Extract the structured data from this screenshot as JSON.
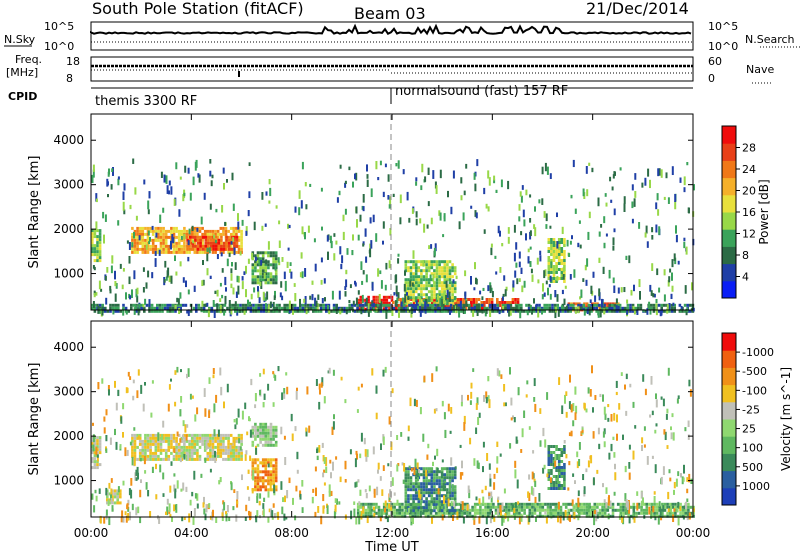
{
  "header": {
    "station_title": "South Pole Station (fitACF)",
    "beam": "Beam 03",
    "date": "21/Dec/2014"
  },
  "strip_labels": {
    "nsky": "N.Sky",
    "nsearch": "N.Search",
    "freq_line1": "Freq.",
    "freq_line2": "[MHz]",
    "nave": "Nave",
    "cpid": "CPID",
    "nsky_ticks": [
      "10^5",
      "10^0"
    ],
    "nsearch_ticks": [
      "10^5",
      "10^0"
    ],
    "freq_ticks": [
      "18",
      "8"
    ],
    "nave_ticks": [
      "60",
      "0"
    ],
    "cpid_segments": [
      {
        "label": "themis 3300 RF",
        "start_hour": 0
      },
      {
        "label": "normalsound (fast) 157 RF",
        "start_hour": 12
      }
    ]
  },
  "chart_data": [
    {
      "type": "heatmap",
      "title": "",
      "xlabel": "Time UT",
      "ylabel": "Slant Range [km]",
      "x_ticks": [
        "00:00",
        "04:00",
        "08:00",
        "12:00",
        "16:00",
        "20:00",
        "00:00"
      ],
      "xlim_hours": [
        0,
        24
      ],
      "y_ticks": [
        1000,
        2000,
        3000,
        4000
      ],
      "ylim": [
        180,
        4590
      ],
      "colorbar": {
        "label": "Power [dB]",
        "ticks": [
          "4",
          "8",
          "12",
          "16",
          "20",
          "24",
          "28"
        ],
        "colors": [
          "#0a1ef5",
          "#1f3fa6",
          "#2b6b45",
          "#3aa35a",
          "#98d848",
          "#e8e03c",
          "#f5b02a",
          "#f07818",
          "#e84018",
          "#f00c0c"
        ]
      },
      "regions": [
        {
          "t0": 0.0,
          "t1": 0.4,
          "r0": 1300,
          "r1": 2000,
          "level": 4
        },
        {
          "t0": 1.6,
          "t1": 6.0,
          "r0": 1450,
          "r1": 2050,
          "level": 6
        },
        {
          "t0": 3.8,
          "t1": 5.8,
          "r0": 1550,
          "r1": 1850,
          "level": 8
        },
        {
          "t0": 6.4,
          "t1": 7.4,
          "r0": 800,
          "r1": 1500,
          "level": 3
        },
        {
          "t0": 10.6,
          "t1": 12.0,
          "r0": 200,
          "r1": 500,
          "level": 9
        },
        {
          "t0": 12.0,
          "t1": 17.0,
          "r0": 200,
          "r1": 450,
          "level": 8
        },
        {
          "t0": 12.5,
          "t1": 14.5,
          "r0": 300,
          "r1": 1300,
          "level": 4
        },
        {
          "t0": 18.2,
          "t1": 18.9,
          "r0": 800,
          "r1": 1800,
          "level": 4
        },
        {
          "t0": 19.0,
          "t1": 21.0,
          "r0": 200,
          "r1": 350,
          "level": 7
        },
        {
          "t0": 0.0,
          "t1": 24.0,
          "r0": 180,
          "r1": 320,
          "level": 2
        }
      ]
    },
    {
      "type": "heatmap",
      "title": "",
      "xlabel": "Time UT",
      "ylabel": "Slant Range [km]",
      "x_ticks": [
        "00:00",
        "04:00",
        "08:00",
        "12:00",
        "16:00",
        "20:00",
        "00:00"
      ],
      "xlim_hours": [
        0,
        24
      ],
      "y_ticks": [
        1000,
        2000,
        3000,
        4000
      ],
      "ylim": [
        180,
        4590
      ],
      "colorbar": {
        "label": "Velocity [m s^-1]",
        "ticks": [
          "1000",
          "500",
          "100",
          "25",
          "-25",
          "-100",
          "-500",
          "-1000"
        ],
        "colors": [
          "#1d3fb8",
          "#2a5fa0",
          "#3a8a5a",
          "#5fb860",
          "#8fd870",
          "#c0c0b8",
          "#f0c020",
          "#f09018",
          "#f06010",
          "#f00c0c"
        ]
      },
      "regions": [
        {
          "t0": 0.0,
          "t1": 0.4,
          "r0": 1300,
          "r1": 2000,
          "level": 5
        },
        {
          "t0": 1.6,
          "t1": 6.0,
          "r0": 1450,
          "r1": 2050,
          "level": 5
        },
        {
          "t0": 6.4,
          "t1": 7.4,
          "r0": 800,
          "r1": 1500,
          "level": 7
        },
        {
          "t0": 6.4,
          "t1": 7.4,
          "r0": 1800,
          "r1": 2300,
          "level": 4
        },
        {
          "t0": 10.6,
          "t1": 24.0,
          "r0": 200,
          "r1": 500,
          "level": 3
        },
        {
          "t0": 12.5,
          "t1": 14.5,
          "r0": 300,
          "r1": 1300,
          "level": 2
        },
        {
          "t0": 18.2,
          "t1": 18.9,
          "r0": 800,
          "r1": 1800,
          "level": 2
        },
        {
          "t0": 0.6,
          "t1": 1.2,
          "r0": 500,
          "r1": 800,
          "level": 5
        }
      ]
    }
  ]
}
